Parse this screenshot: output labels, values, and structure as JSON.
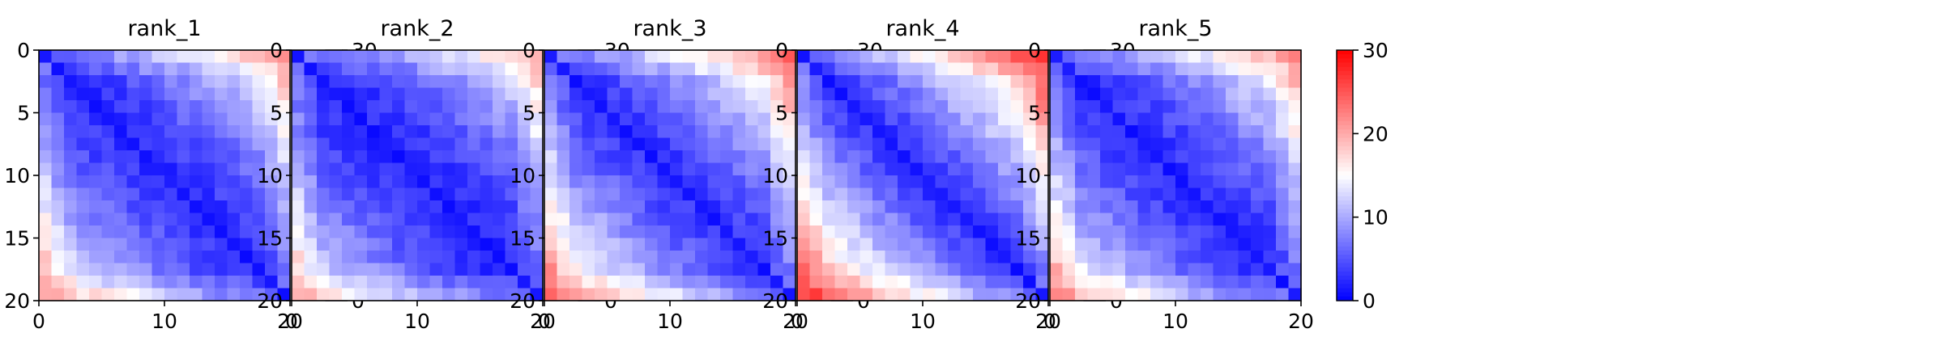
{
  "chart_data": [
    {
      "type": "heatmap",
      "title": "rank_1",
      "xlim": [
        0,
        20
      ],
      "ylim": [
        20,
        0
      ],
      "x_ticks": [
        "0",
        "10",
        "20"
      ],
      "y_ticks": [
        "0",
        "5",
        "10",
        "15",
        "20"
      ],
      "colorbar": {
        "ticks": [
          "0",
          "10",
          "20",
          "30"
        ],
        "range": [
          0,
          30
        ],
        "colormap": "bwr"
      },
      "peak_corner_value": 21,
      "band_width": 2.6,
      "curve": 1.4
    },
    {
      "type": "heatmap",
      "title": "rank_2",
      "xlim": [
        0,
        20
      ],
      "ylim": [
        20,
        0
      ],
      "x_ticks": [
        "0",
        "10",
        "20"
      ],
      "y_ticks": [
        "0",
        "5",
        "10",
        "15",
        "20"
      ],
      "colorbar": {
        "ticks": [
          "0",
          "10",
          "20",
          "30"
        ],
        "range": [
          0,
          30
        ],
        "colormap": "bwr"
      },
      "peak_corner_value": 20,
      "band_width": 2.4,
      "curve": 1.5
    },
    {
      "type": "heatmap",
      "title": "rank_3",
      "xlim": [
        0,
        20
      ],
      "ylim": [
        20,
        0
      ],
      "x_ticks": [
        "0",
        "10",
        "20"
      ],
      "y_ticks": [
        "0",
        "5",
        "10",
        "15",
        "20"
      ],
      "colorbar": {
        "ticks": [
          "0",
          "10",
          "20",
          "30"
        ],
        "range": [
          0,
          30
        ],
        "colormap": "bwr"
      },
      "peak_corner_value": 24,
      "band_width": 2.8,
      "curve": 1.3
    },
    {
      "type": "heatmap",
      "title": "rank_4",
      "xlim": [
        0,
        20
      ],
      "ylim": [
        20,
        0
      ],
      "x_ticks": [
        "0",
        "10",
        "20"
      ],
      "y_ticks": [
        "0",
        "5",
        "10",
        "15",
        "20"
      ],
      "colorbar": {
        "ticks": [
          "0",
          "10",
          "20",
          "30"
        ],
        "range": [
          0,
          30
        ],
        "colormap": "bwr"
      },
      "peak_corner_value": 27,
      "band_width": 2.6,
      "curve": 1.2
    },
    {
      "type": "heatmap",
      "title": "rank_5",
      "xlim": [
        0,
        20
      ],
      "ylim": [
        20,
        0
      ],
      "x_ticks": [
        "0",
        "10",
        "20"
      ],
      "y_ticks": [
        "0",
        "5",
        "10",
        "15",
        "20"
      ],
      "colorbar": {
        "ticks": [
          "0",
          "10",
          "20",
          "30"
        ],
        "range": [
          0,
          30
        ],
        "colormap": "bwr"
      },
      "peak_corner_value": 22,
      "band_width": 2.5,
      "curve": 1.4
    }
  ]
}
